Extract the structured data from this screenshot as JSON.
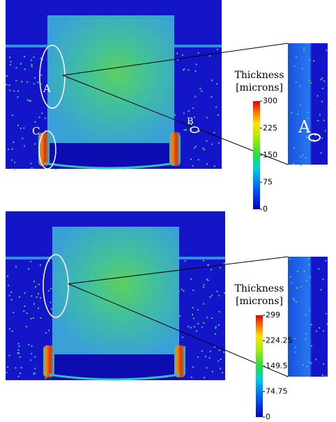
{
  "panels": [
    {
      "annotations": [
        "A",
        "B",
        "C"
      ],
      "inset_label": "A",
      "colorbar": {
        "title": [
          "Thickness",
          "[microns]"
        ],
        "ticks": [
          300,
          225,
          150,
          75,
          0
        ]
      }
    },
    {
      "colorbar": {
        "title": [
          "Thickness",
          "[microns]"
        ],
        "ticks": [
          299,
          224.25,
          149.5,
          74.75,
          0
        ]
      }
    }
  ]
}
